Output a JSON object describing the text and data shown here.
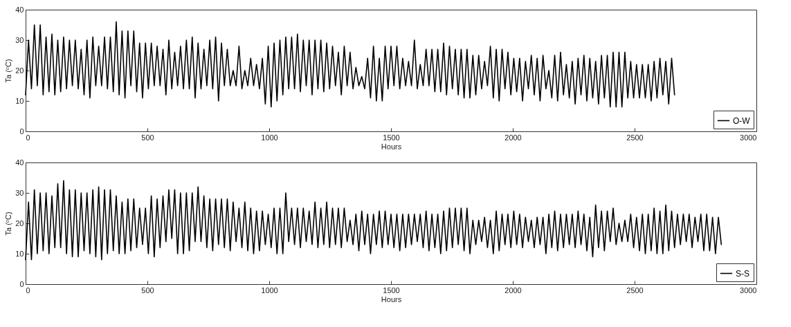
{
  "chart_data": [
    {
      "type": "line",
      "xlabel": "Hours",
      "ylabel": "Ta (ᵒC)",
      "xlim": [
        0,
        3000
      ],
      "xticks": [
        0,
        500,
        1000,
        1500,
        2000,
        2500,
        3000
      ],
      "ylim": [
        0,
        40
      ],
      "yticks": [
        0,
        10,
        20,
        30,
        40
      ],
      "legend": "bottom right",
      "x": [
        0,
        12,
        24,
        36,
        48,
        60,
        72,
        84,
        96,
        108,
        120,
        132,
        144,
        156,
        168,
        180,
        192,
        204,
        216,
        228,
        240,
        252,
        264,
        276,
        288,
        300,
        312,
        324,
        336,
        348,
        360,
        372,
        384,
        396,
        408,
        420,
        432,
        444,
        456,
        468,
        480,
        492,
        504,
        516,
        528,
        540,
        552,
        564,
        576,
        588,
        600,
        612,
        624,
        636,
        648,
        660,
        672,
        684,
        696,
        708,
        720,
        732,
        744,
        756,
        768,
        780,
        792,
        804,
        816,
        828,
        840,
        852,
        864,
        876,
        888,
        900,
        912,
        924,
        936,
        948,
        960,
        972,
        984,
        996,
        1008,
        1020,
        1032,
        1044,
        1056,
        1068,
        1080,
        1092,
        1104,
        1116,
        1128,
        1140,
        1152,
        1164,
        1176,
        1188,
        1200,
        1212,
        1224,
        1236,
        1248,
        1260,
        1272,
        1284,
        1296,
        1308,
        1320,
        1332,
        1344,
        1356,
        1368,
        1380,
        1392,
        1404,
        1416,
        1428,
        1440,
        1452,
        1464,
        1476,
        1488,
        1500,
        1512,
        1524,
        1536,
        1548,
        1560,
        1572,
        1584,
        1596,
        1608,
        1620,
        1632,
        1644,
        1656,
        1668,
        1680,
        1692,
        1704,
        1716,
        1728,
        1740,
        1752,
        1764,
        1776,
        1788,
        1800,
        1812,
        1824,
        1836,
        1848,
        1860,
        1872,
        1884,
        1896,
        1908,
        1920,
        1932,
        1944,
        1956,
        1968,
        1980,
        1992,
        2004,
        2016,
        2028,
        2040,
        2052,
        2064,
        2076,
        2088,
        2100,
        2112,
        2124,
        2136,
        2148,
        2160,
        2172,
        2184,
        2196,
        2208,
        2220,
        2232,
        2244,
        2256,
        2268,
        2280,
        2292,
        2304,
        2316,
        2328,
        2340,
        2352,
        2364,
        2376,
        2388,
        2400,
        2412,
        2424,
        2436,
        2448,
        2460,
        2472,
        2484,
        2496,
        2508,
        2520,
        2532,
        2544,
        2556,
        2568,
        2580,
        2592,
        2604,
        2616,
        2628,
        2640,
        2652,
        2664
      ],
      "series": [
        {
          "name": "O-W",
          "color": "#000000",
          "values": [
            12,
            30,
            14,
            35,
            15,
            35,
            12,
            31,
            13,
            32,
            12,
            30,
            13,
            31,
            14,
            30,
            15,
            30,
            14,
            27,
            12,
            30,
            11,
            31,
            15,
            28,
            15,
            31,
            14,
            31,
            13,
            36,
            12,
            33,
            11,
            33,
            15,
            33,
            13,
            29,
            11,
            29,
            14,
            29,
            15,
            28,
            15,
            27,
            12,
            30,
            14,
            26,
            15,
            28,
            14,
            30,
            14,
            31,
            11,
            29,
            14,
            27,
            15,
            30,
            14,
            31,
            10,
            29,
            15,
            27,
            15,
            20,
            15,
            28,
            14,
            20,
            15,
            24,
            15,
            22,
            14,
            24,
            9,
            28,
            8,
            29,
            10,
            30,
            12,
            31,
            14,
            31,
            14,
            32,
            13,
            30,
            15,
            30,
            12,
            30,
            14,
            30,
            13,
            29,
            14,
            28,
            15,
            26,
            12,
            28,
            15,
            26,
            14,
            21,
            15,
            18,
            14,
            24,
            11,
            28,
            10,
            24,
            10,
            28,
            14,
            28,
            15,
            28,
            14,
            24,
            15,
            23,
            15,
            30,
            14,
            22,
            15,
            27,
            15,
            27,
            13,
            27,
            13,
            29,
            12,
            28,
            14,
            27,
            12,
            27,
            11,
            27,
            11,
            25,
            12,
            25,
            14,
            23,
            15,
            28,
            11,
            27,
            10,
            27,
            14,
            26,
            12,
            24,
            13,
            24,
            10,
            23,
            14,
            25,
            12,
            24,
            10,
            25,
            14,
            20,
            11,
            25,
            10,
            26,
            12,
            22,
            11,
            23,
            9,
            24,
            12,
            25,
            10,
            24,
            11,
            23,
            9,
            25,
            11,
            25,
            8,
            26,
            8,
            26,
            8,
            26,
            11,
            23,
            11,
            22,
            11,
            22,
            11,
            22,
            10,
            23,
            11,
            24,
            12,
            23,
            9,
            24,
            12
          ]
        }
      ]
    },
    {
      "type": "line",
      "xlabel": "Hours",
      "ylabel": "Ta (ᵒC)",
      "xlim": [
        0,
        3000
      ],
      "xticks": [
        0,
        500,
        1000,
        1500,
        2000,
        2500,
        3000
      ],
      "ylim": [
        0,
        40
      ],
      "yticks": [
        0,
        10,
        20,
        30,
        40
      ],
      "legend": "bottom right",
      "x": [
        0,
        12,
        24,
        36,
        48,
        60,
        72,
        84,
        96,
        108,
        120,
        132,
        144,
        156,
        168,
        180,
        192,
        204,
        216,
        228,
        240,
        252,
        264,
        276,
        288,
        300,
        312,
        324,
        336,
        348,
        360,
        372,
        384,
        396,
        408,
        420,
        432,
        444,
        456,
        468,
        480,
        492,
        504,
        516,
        528,
        540,
        552,
        564,
        576,
        588,
        600,
        612,
        624,
        636,
        648,
        660,
        672,
        684,
        696,
        708,
        720,
        732,
        744,
        756,
        768,
        780,
        792,
        804,
        816,
        828,
        840,
        852,
        864,
        876,
        888,
        900,
        912,
        924,
        936,
        948,
        960,
        972,
        984,
        996,
        1008,
        1020,
        1032,
        1044,
        1056,
        1068,
        1080,
        1092,
        1104,
        1116,
        1128,
        1140,
        1152,
        1164,
        1176,
        1188,
        1200,
        1212,
        1224,
        1236,
        1248,
        1260,
        1272,
        1284,
        1296,
        1308,
        1320,
        1332,
        1344,
        1356,
        1368,
        1380,
        1392,
        1404,
        1416,
        1428,
        1440,
        1452,
        1464,
        1476,
        1488,
        1500,
        1512,
        1524,
        1536,
        1548,
        1560,
        1572,
        1584,
        1596,
        1608,
        1620,
        1632,
        1644,
        1656,
        1668,
        1680,
        1692,
        1704,
        1716,
        1728,
        1740,
        1752,
        1764,
        1776,
        1788,
        1800,
        1812,
        1824,
        1836,
        1848,
        1860,
        1872,
        1884,
        1896,
        1908,
        1920,
        1932,
        1944,
        1956,
        1968,
        1980,
        1992,
        2004,
        2016,
        2028,
        2040,
        2052,
        2064,
        2076,
        2088,
        2100,
        2112,
        2124,
        2136,
        2148,
        2160,
        2172,
        2184,
        2196,
        2208,
        2220,
        2232,
        2244,
        2256,
        2268,
        2280,
        2292,
        2304,
        2316,
        2328,
        2340,
        2352,
        2364,
        2376,
        2388,
        2400,
        2412,
        2424,
        2436,
        2448,
        2460,
        2472,
        2484,
        2496,
        2508,
        2520,
        2532,
        2544,
        2556,
        2568,
        2580,
        2592,
        2604,
        2616,
        2628,
        2640,
        2652,
        2664,
        2676,
        2688,
        2700,
        2712,
        2724,
        2736,
        2748,
        2760,
        2772,
        2784,
        2796,
        2808,
        2820,
        2832,
        2844,
        2856
      ],
      "series": [
        {
          "name": "S-S",
          "color": "#000000",
          "values": [
            8,
            27,
            8,
            31,
            10,
            30,
            11,
            30,
            10,
            29,
            12,
            33,
            12,
            34,
            10,
            31,
            9,
            31,
            9,
            30,
            11,
            30,
            10,
            31,
            9,
            32,
            8,
            31,
            10,
            31,
            11,
            29,
            10,
            27,
            10,
            28,
            11,
            28,
            12,
            25,
            13,
            25,
            10,
            29,
            9,
            28,
            12,
            29,
            14,
            31,
            15,
            31,
            10,
            30,
            10,
            30,
            11,
            30,
            14,
            32,
            14,
            29,
            12,
            28,
            11,
            28,
            13,
            28,
            12,
            28,
            11,
            27,
            14,
            25,
            12,
            27,
            11,
            25,
            10,
            24,
            11,
            24,
            13,
            23,
            12,
            25,
            10,
            25,
            10,
            30,
            14,
            25,
            13,
            25,
            12,
            25,
            14,
            24,
            13,
            27,
            12,
            25,
            13,
            27,
            12,
            25,
            13,
            25,
            12,
            25,
            14,
            21,
            13,
            23,
            11,
            24,
            13,
            23,
            10,
            23,
            13,
            24,
            12,
            24,
            13,
            23,
            12,
            23,
            11,
            23,
            12,
            23,
            13,
            23,
            14,
            23,
            12,
            24,
            11,
            23,
            12,
            23,
            10,
            24,
            11,
            25,
            12,
            25,
            13,
            25,
            11,
            25,
            10,
            21,
            13,
            21,
            14,
            22,
            12,
            21,
            10,
            24,
            11,
            23,
            13,
            23,
            12,
            24,
            13,
            23,
            12,
            22,
            14,
            21,
            12,
            22,
            13,
            22,
            10,
            23,
            12,
            24,
            11,
            23,
            12,
            23,
            13,
            23,
            12,
            24,
            13,
            23,
            11,
            22,
            9,
            26,
            12,
            24,
            11,
            24,
            14,
            25,
            13,
            20,
            14,
            21,
            14,
            23,
            12,
            22,
            11,
            23,
            10,
            23,
            11,
            25,
            10,
            24,
            10,
            26,
            11,
            24,
            12,
            23,
            13,
            23,
            14,
            23,
            12,
            22,
            14,
            23,
            11,
            23,
            11,
            22,
            10,
            22,
            13
          ]
        }
      ]
    }
  ]
}
